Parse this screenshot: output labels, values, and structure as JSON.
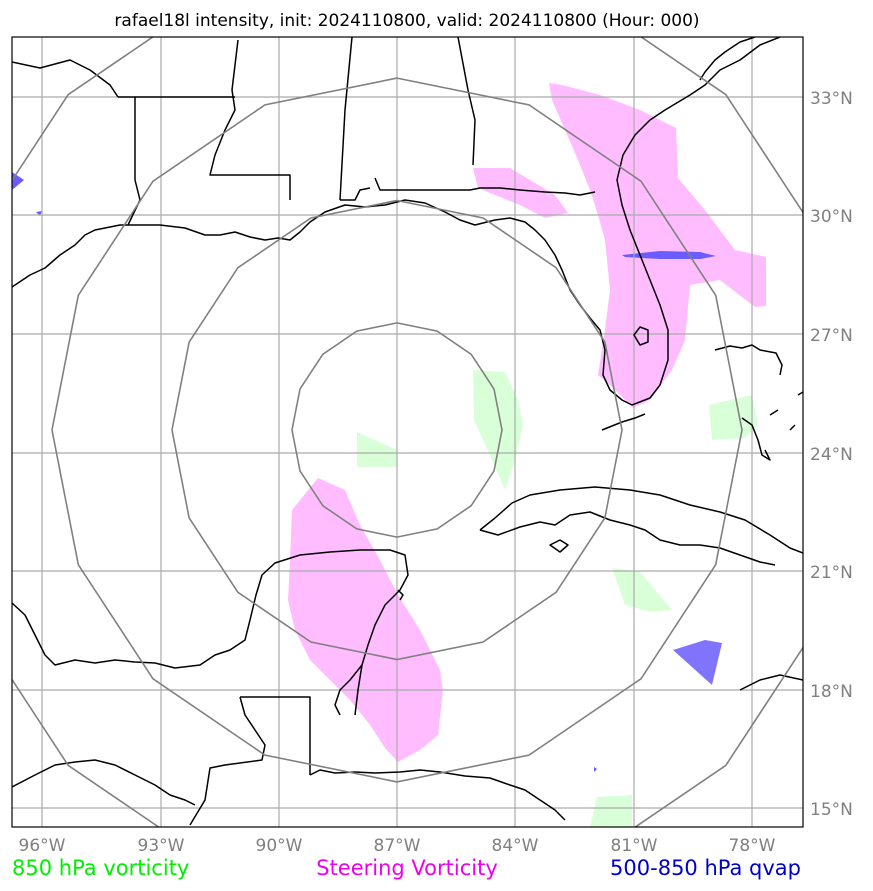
{
  "title": "rafael18l intensity, init: 2024110800, valid: 2024110800 (Hour: 000)",
  "colors": {
    "steering_vorticity": "#ff99ff",
    "vorticity_850": "#ccffcc",
    "qvap": "#6a5cff",
    "rings": "#808080",
    "grid": "#aaaaaa",
    "coast": "#000000"
  },
  "map": {
    "lon_ticks": [
      "96°W",
      "93°W",
      "90°W",
      "87°W",
      "84°W",
      "81°W",
      "78°W"
    ],
    "lat_ticks": [
      "33°N",
      "30°N",
      "27°N",
      "24°N",
      "21°N",
      "18°N",
      "15°N"
    ],
    "center": {
      "lon": -87,
      "lat": 24.5
    },
    "range_ring_count": 4
  },
  "legend": {
    "vorticity_850": {
      "label": "850 hPa vorticity",
      "color": "#00ee00"
    },
    "steering": {
      "label": "Steering Vorticity",
      "color": "#ee00ee"
    },
    "qvap": {
      "label": "500-850 hPa qvap",
      "color": "#0000cc"
    }
  }
}
